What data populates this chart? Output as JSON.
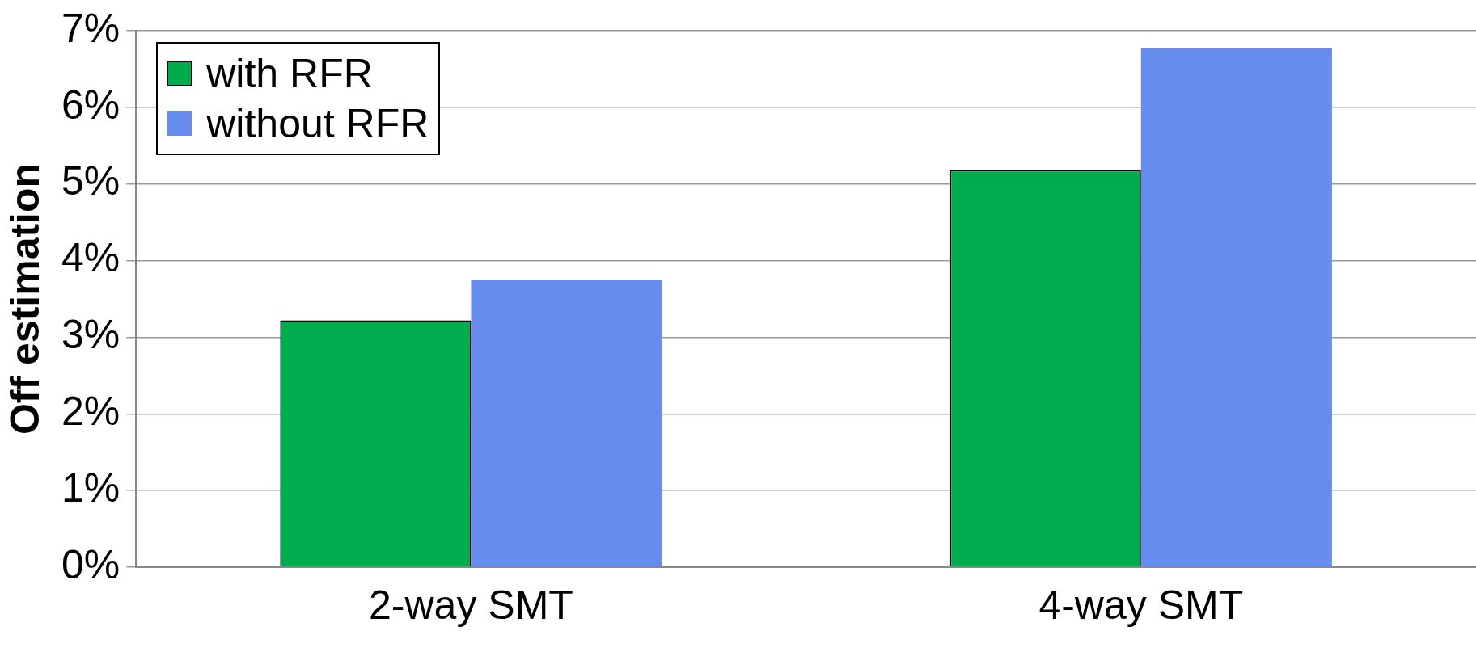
{
  "chart_data": {
    "type": "bar",
    "ylabel": "Off estimation",
    "categories": [
      "2-way SMT",
      "4-way SMT"
    ],
    "series": [
      {
        "name": "with RFR",
        "color": "#00ad4e",
        "values": [
          3.22,
          5.18
        ]
      },
      {
        "name": "without RFR",
        "color": "#668cee",
        "values": [
          3.75,
          6.77
        ]
      }
    ],
    "ylim": [
      0,
      7
    ],
    "yticks": [
      {
        "value": 0,
        "label": "0%"
      },
      {
        "value": 1,
        "label": "1%"
      },
      {
        "value": 2,
        "label": "2%"
      },
      {
        "value": 3,
        "label": "3%"
      },
      {
        "value": 4,
        "label": "4%"
      },
      {
        "value": 5,
        "label": "5%"
      },
      {
        "value": 6,
        "label": "6%"
      },
      {
        "value": 7,
        "label": "7%"
      }
    ],
    "grid": "y",
    "legend": "top left"
  }
}
